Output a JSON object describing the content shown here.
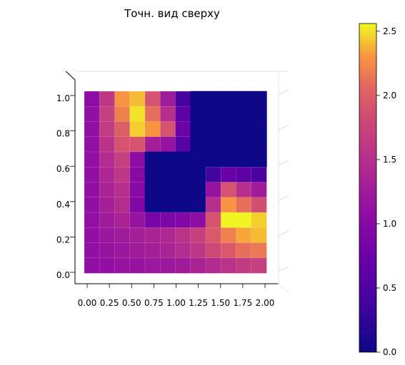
{
  "chart_data": {
    "type": "heatmap",
    "title": "Точн. вид сверху",
    "x_ticks": [
      "0.00",
      "0.25",
      "0.50",
      "0.75",
      "1.00",
      "1.25",
      "1.50",
      "1.75",
      "2.00"
    ],
    "y_ticks": [
      "0.0",
      "0.2",
      "0.4",
      "0.6",
      "0.8",
      "1.0"
    ],
    "colorbar_ticks": [
      "0.0",
      "0.5",
      "1.0",
      "1.5",
      "2.0",
      "2.5"
    ],
    "colorbar_range": [
      0,
      2.56
    ],
    "colormap": "plasma",
    "xlim": [
      0,
      2
    ],
    "ylim": [
      0,
      1
    ],
    "grid": {
      "nx": 12,
      "ny": 12
    },
    "values_note": "rows listed top (y=1.0) to bottom (y=0.0), columns left (x=0) to right (x=2); null = masked cells shown at 0",
    "values": [
      [
        1.05,
        1.6,
        2.3,
        2.4,
        1.9,
        1.25,
        0.4,
        0,
        0,
        0,
        0,
        0
      ],
      [
        1.1,
        1.7,
        2.2,
        2.5,
        2.1,
        1.5,
        0.6,
        0,
        0,
        0,
        0,
        0
      ],
      [
        1.1,
        1.65,
        2.0,
        2.45,
        2.3,
        1.9,
        0.75,
        0,
        0,
        0,
        0,
        0
      ],
      [
        1.1,
        1.55,
        1.9,
        1.9,
        1.3,
        1.15,
        0.55,
        0,
        0,
        0,
        0,
        0
      ],
      [
        1.1,
        1.45,
        1.7,
        1.05,
        0,
        0,
        0,
        0,
        0,
        0,
        0,
        0
      ],
      [
        1.1,
        1.4,
        1.6,
        1.0,
        0,
        0,
        0,
        0,
        0.4,
        0.7,
        0.6,
        0.45
      ],
      [
        1.1,
        1.35,
        1.5,
        1.0,
        0,
        0,
        0,
        0,
        1.15,
        1.9,
        1.5,
        1.25
      ],
      [
        1.1,
        1.3,
        1.45,
        0.95,
        0,
        0,
        0,
        0,
        1.5,
        2.3,
        2.1,
        1.85
      ],
      [
        1.1,
        1.25,
        1.35,
        1.15,
        0.85,
        0.9,
        0.95,
        1.05,
        1.9,
        2.55,
        2.55,
        2.45
      ],
      [
        1.1,
        1.2,
        1.25,
        1.3,
        1.35,
        1.4,
        1.55,
        1.7,
        1.95,
        2.2,
        2.35,
        2.4
      ],
      [
        1.1,
        1.15,
        1.2,
        1.25,
        1.3,
        1.35,
        1.45,
        1.6,
        1.8,
        1.95,
        2.1,
        2.15
      ],
      [
        1.1,
        1.1,
        1.15,
        1.15,
        1.2,
        1.2,
        1.25,
        1.35,
        1.45,
        1.55,
        1.65,
        1.7
      ]
    ]
  }
}
